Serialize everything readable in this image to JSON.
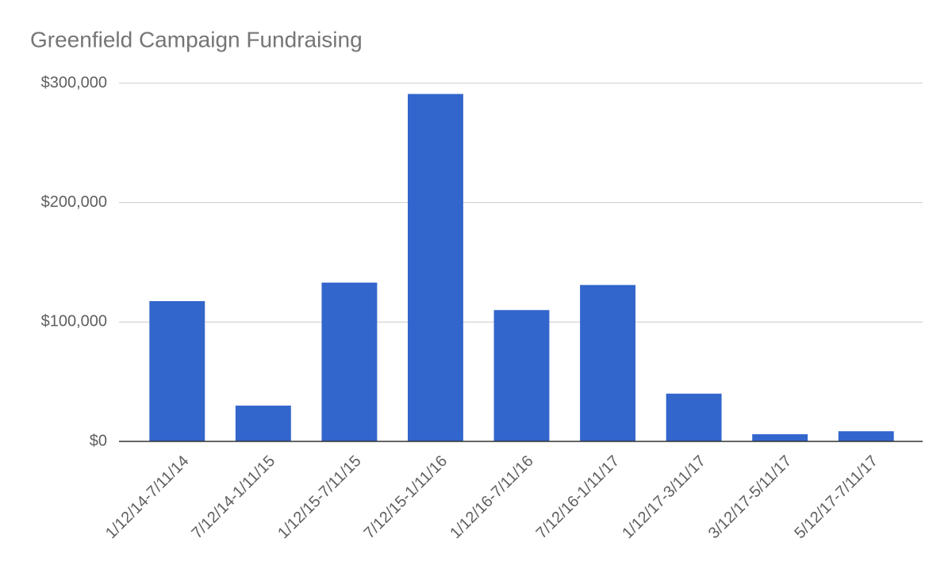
{
  "chart_data": {
    "type": "bar",
    "title": "Greenfield Campaign Fundraising",
    "categories": [
      "1/12/14-7/11/14",
      "7/12/14-1/11/15",
      "1/12/15-7/11/15",
      "7/12/15-1/11/16",
      "1/12/16-7/11/16",
      "7/12/16-1/11/17",
      "1/12/17-3/11/17",
      "3/12/17-5/11/17",
      "5/12/17-7/11/17"
    ],
    "values": [
      117500,
      30000,
      133000,
      291000,
      110000,
      131000,
      40000,
      6000,
      8500
    ],
    "color": "#3366cc",
    "ylim": [
      0,
      300000
    ],
    "yticks": [
      {
        "value": 0,
        "label": "$0"
      },
      {
        "value": 100000,
        "label": "$100,000"
      },
      {
        "value": 200000,
        "label": "$200,000"
      },
      {
        "value": 300000,
        "label": "$300,000"
      }
    ],
    "grid": true
  }
}
